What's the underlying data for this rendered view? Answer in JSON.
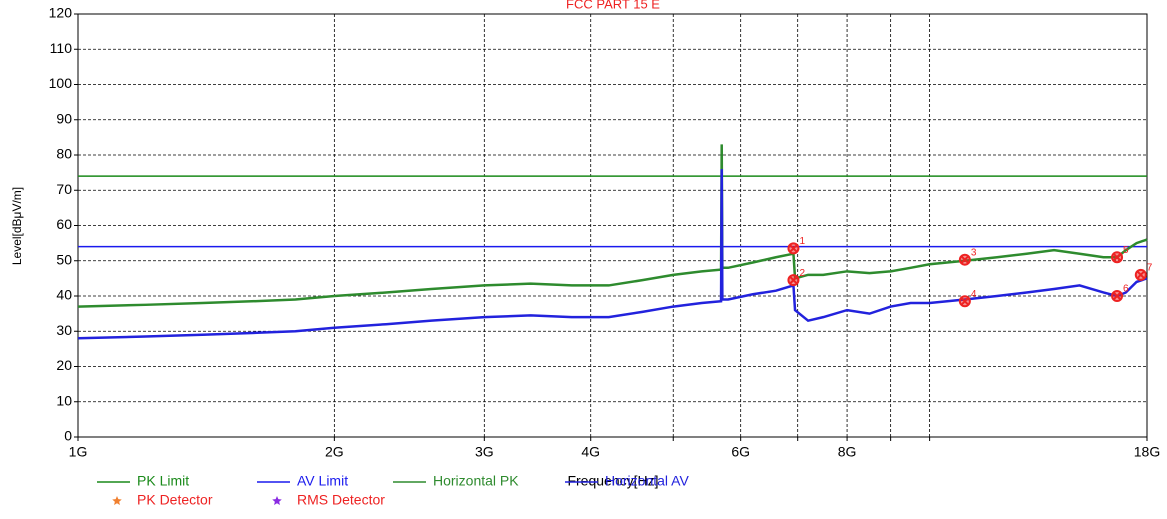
{
  "chart_data": {
    "type": "line",
    "title": "FCC PART 15 E",
    "xlabel": "Frequency[Hz]",
    "ylabel": "Level[dBμV/m]",
    "xscale": "log",
    "grid": true,
    "xlim": [
      1000000000,
      18000000000
    ],
    "xticks": [
      {
        "value": 1000000000,
        "label": "1G"
      },
      {
        "value": 2000000000,
        "label": "2G"
      },
      {
        "value": 3000000000,
        "label": "3G"
      },
      {
        "value": 4000000000,
        "label": "4G"
      },
      {
        "value": 5000000000,
        "label": null
      },
      {
        "value": 6000000000,
        "label": "6G"
      },
      {
        "value": 7000000000,
        "label": null
      },
      {
        "value": 8000000000,
        "label": "8G"
      },
      {
        "value": 9000000000,
        "label": null
      },
      {
        "value": 10000000000,
        "label": null
      },
      {
        "value": 18000000000,
        "label": "18G"
      }
    ],
    "ylim": [
      0,
      120
    ],
    "yticks": [
      0,
      10,
      20,
      30,
      40,
      50,
      60,
      70,
      80,
      90,
      100,
      110,
      120
    ],
    "series": [
      {
        "name": "PK Limit",
        "color": "#1a8a1a",
        "x": [
          1000000000,
          18000000000
        ],
        "values": [
          74,
          74
        ]
      },
      {
        "name": "AV Limit",
        "color": "#1a1aee",
        "x": [
          1000000000,
          18000000000
        ],
        "values": [
          54,
          54
        ]
      },
      {
        "name": "Horizontal PK",
        "color": "#2e8b2e",
        "x": [
          1000000000,
          1200000000,
          1400000000,
          1600000000,
          1800000000,
          2000000000,
          2300000000,
          2600000000,
          3000000000,
          3400000000,
          3800000000,
          4200000000,
          4600000000,
          5000000000,
          5400000000,
          5690000000,
          5700000000,
          5710000000,
          5800000000,
          6200000000,
          6600000000,
          6920000000,
          6950000000,
          7200000000,
          7500000000,
          8000000000,
          8500000000,
          9000000000,
          9500000000,
          10000000000,
          11000000000,
          12000000000,
          13000000000,
          14000000000,
          15000000000,
          16000000000,
          16600000000,
          17000000000,
          17500000000,
          18000000000
        ],
        "values": [
          37,
          37.5,
          38,
          38.5,
          39,
          40,
          41,
          42,
          43,
          43.5,
          43,
          43,
          44.5,
          46,
          47,
          47.5,
          83,
          48,
          48,
          49.5,
          51,
          52,
          45,
          46,
          46,
          47,
          46.5,
          47,
          48,
          49,
          50,
          51,
          52,
          53,
          52,
          51,
          51,
          53,
          55,
          56
        ]
      },
      {
        "name": "Horizontal AV",
        "color": "#2222dd",
        "x": [
          1000000000,
          1200000000,
          1400000000,
          1600000000,
          1800000000,
          2000000000,
          2300000000,
          2600000000,
          3000000000,
          3400000000,
          3800000000,
          4200000000,
          4600000000,
          5000000000,
          5400000000,
          5690000000,
          5700000000,
          5710000000,
          5800000000,
          6200000000,
          6600000000,
          6920000000,
          6950000000,
          7200000000,
          7500000000,
          8000000000,
          8500000000,
          9000000000,
          9500000000,
          10000000000,
          11000000000,
          12000000000,
          13000000000,
          14000000000,
          15000000000,
          16000000000,
          16600000000,
          17000000000,
          17500000000,
          18000000000
        ],
        "values": [
          28,
          28.5,
          29,
          29.5,
          30,
          31,
          32,
          33,
          34,
          34.5,
          34,
          34,
          35.5,
          37,
          38,
          38.5,
          76,
          39,
          39,
          40.5,
          41.5,
          43,
          36,
          33,
          34,
          36,
          35,
          37,
          38,
          38,
          39,
          40,
          41,
          42,
          43,
          41,
          40,
          41,
          44,
          45
        ]
      },
      {
        "name": "PK Detector",
        "color": "#f08030",
        "marker": "star",
        "marker_color": "#ee2222",
        "x": [
          6920000000,
          11000000000,
          16600000000
        ],
        "values": [
          53.5,
          50.3,
          51
        ],
        "labels": [
          "1",
          "3",
          "5"
        ]
      },
      {
        "name": "RMS Detector",
        "color": "#8a2be2",
        "marker": "star",
        "marker_color": "#ee2222",
        "x": [
          6920000000,
          11000000000,
          16600000000,
          17700000000
        ],
        "values": [
          44.5,
          38.5,
          40,
          46
        ],
        "labels": [
          "2",
          "4",
          "6",
          "7"
        ]
      }
    ]
  }
}
